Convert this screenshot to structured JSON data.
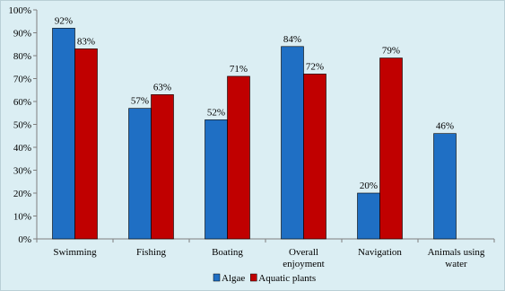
{
  "chart_data": {
    "type": "bar",
    "categories": [
      [
        "Swimming"
      ],
      [
        "Fishing"
      ],
      [
        "Boating"
      ],
      [
        "Overall",
        "enjoyment"
      ],
      [
        "Navigation"
      ],
      [
        "Animals using",
        "water"
      ]
    ],
    "series": [
      {
        "name": "Algae",
        "color": "#1f6fc4",
        "values": [
          92,
          57,
          52,
          84,
          20,
          46
        ]
      },
      {
        "name": "Aquatic plants",
        "color": "#c00000",
        "values": [
          83,
          63,
          71,
          72,
          79,
          null
        ]
      }
    ],
    "value_labels": [
      [
        "92%",
        "57%",
        "52%",
        "84%",
        "20%",
        "46%"
      ],
      [
        "83%",
        "63%",
        "71%",
        "72%",
        "79%",
        null
      ]
    ],
    "yticks": [
      "0%",
      "10%",
      "20%",
      "30%",
      "40%",
      "50%",
      "60%",
      "70%",
      "80%",
      "90%",
      "100%"
    ],
    "ylim": [
      0,
      100
    ],
    "grid": false,
    "legend_position": "bottom"
  }
}
